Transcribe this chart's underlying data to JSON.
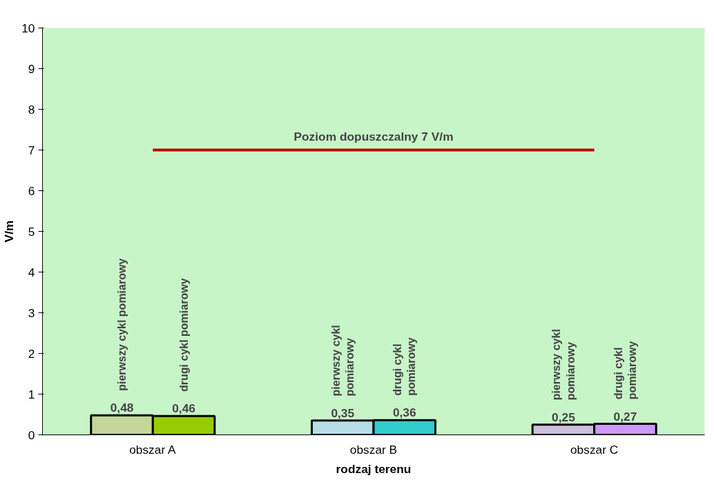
{
  "chart_data": {
    "type": "bar",
    "xlabel": "rodzaj terenu",
    "ylabel": "V/m",
    "categories": [
      "obszar A",
      "obszar B",
      "obszar C"
    ],
    "series": [
      {
        "name": "pierwszy cykl pomiarowy",
        "colors": [
          "#c4d79b",
          "#b7dee8",
          "#ccc0da"
        ],
        "values": [
          0.48,
          0.35,
          0.25
        ],
        "value_labels": [
          "0,48",
          "0,35",
          "0,25"
        ]
      },
      {
        "name": "drugi cykl pomiarowy",
        "colors": [
          "#99cc00",
          "#33cccc",
          "#cc99ff"
        ],
        "values": [
          0.46,
          0.36,
          0.27
        ],
        "value_labels": [
          "0,46",
          "0,36",
          "0,27"
        ]
      }
    ],
    "ylim": [
      0,
      10
    ],
    "yticks": [
      0,
      1,
      2,
      3,
      4,
      5,
      6,
      7,
      8,
      9,
      10
    ],
    "ref_lines": [
      {
        "axis": "y",
        "value": 7,
        "label": "Poziom dopuszczalny 7 V/m",
        "color": "#c00000"
      }
    ],
    "grid": false
  }
}
